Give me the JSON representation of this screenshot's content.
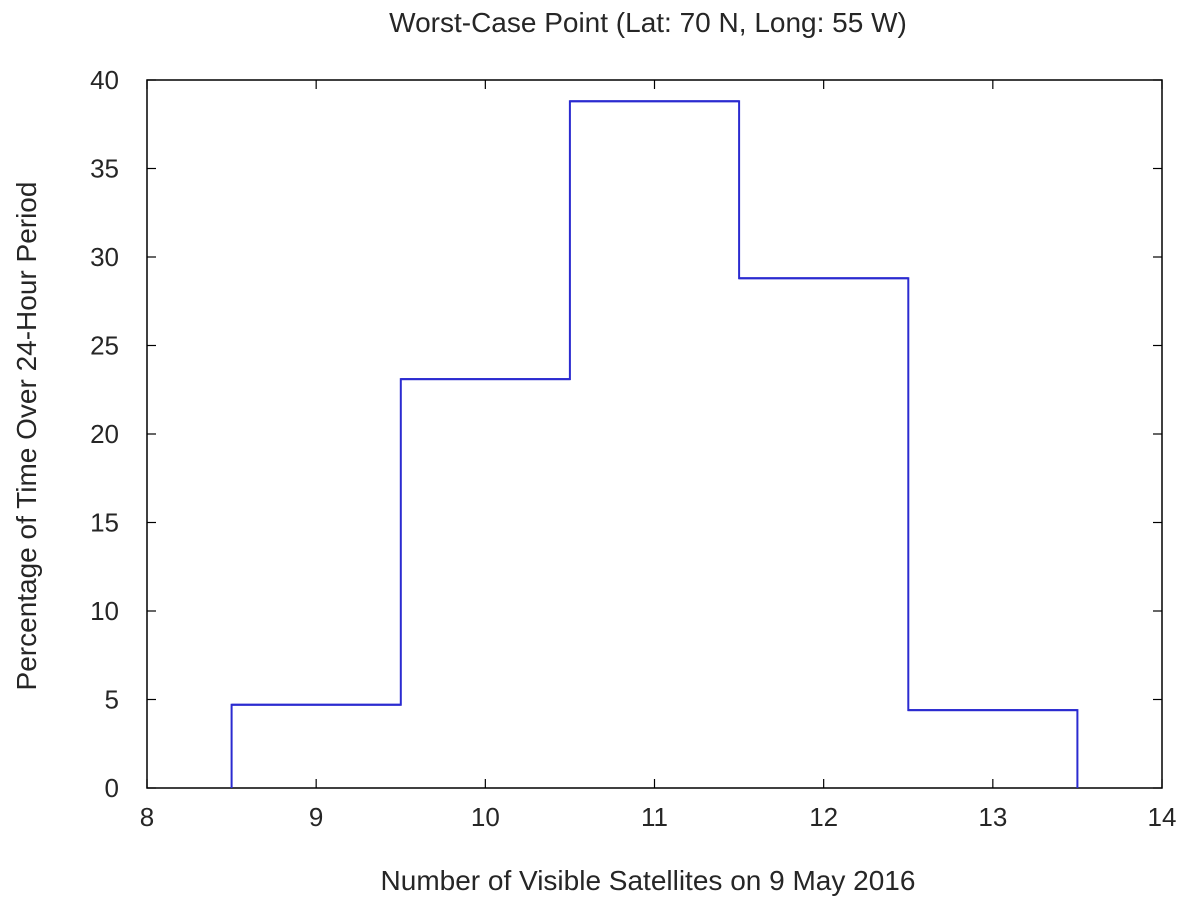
{
  "chart_data": {
    "type": "histogram-step",
    "title": "Worst-Case Point (Lat: 70 N, Long: 55 W)",
    "xlabel": "Number of Visible Satellites on 9 May 2016",
    "ylabel": "Percentage of Time Over 24-Hour Period",
    "xlim": [
      8,
      14
    ],
    "ylim": [
      0,
      40
    ],
    "x_ticks": [
      8,
      9,
      10,
      11,
      12,
      13,
      14
    ],
    "y_ticks": [
      0,
      5,
      10,
      15,
      20,
      25,
      30,
      35,
      40
    ],
    "grid": false,
    "bins": [
      9,
      10,
      11,
      12,
      13
    ],
    "values": [
      4.7,
      23.1,
      38.8,
      28.8,
      4.4
    ],
    "bin_width": 1,
    "line_color": "#2b2bd0"
  }
}
